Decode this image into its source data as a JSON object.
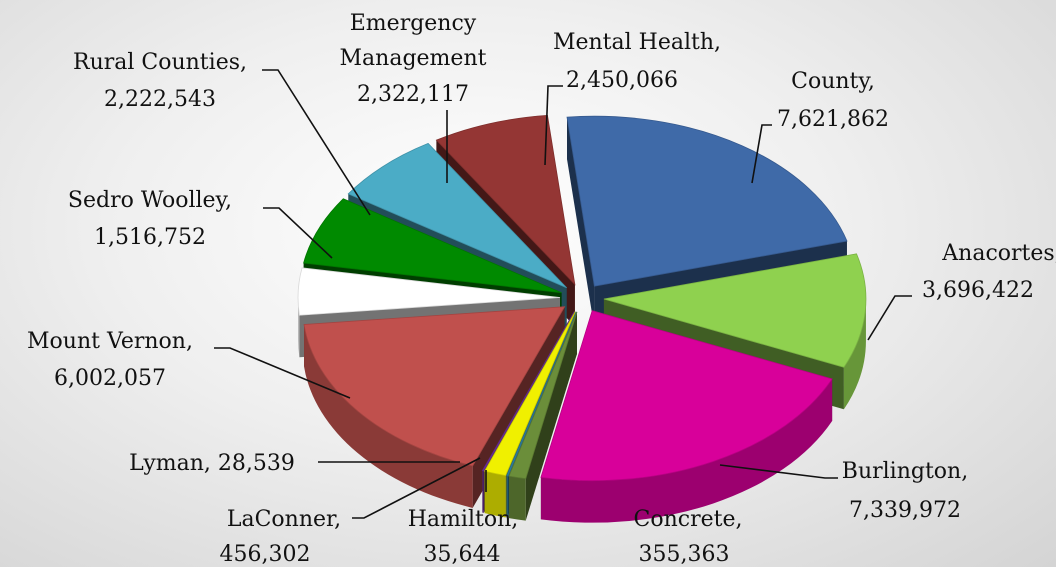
{
  "chart_data": {
    "type": "pie",
    "three_d": true,
    "exploded": true,
    "title": "",
    "series": [
      {
        "name": "",
        "slices": [
          {
            "label": "County",
            "value": 7621862,
            "display": "7,621,862",
            "color": "#3f6aa8"
          },
          {
            "label": "Anacortes",
            "value": 3696422,
            "display": "3,696,422",
            "color": "#8fd14f"
          },
          {
            "label": "Burlington",
            "value": 7339972,
            "display": "7,339,972",
            "color": "#d8009a"
          },
          {
            "label": "Concrete",
            "value": 355363,
            "display": "355,363",
            "color": "#6b8e3a"
          },
          {
            "label": "Hamilton",
            "value": 35644,
            "display": "35,644",
            "color": "#2f7fa0"
          },
          {
            "label": "LaConner",
            "value": 456302,
            "display": "456,302",
            "color": "#f0f000"
          },
          {
            "label": "Lyman",
            "value": 28539,
            "display": "28,539",
            "color": "#7030a0"
          },
          {
            "label": "Mount Vernon",
            "value": 6002057,
            "display": "6,002,057",
            "color": "#c0504d"
          },
          {
            "label": "Sedro Woolley",
            "value": 1516752,
            "display": "1,516,752",
            "color": "#ffffff"
          },
          {
            "label": "Rural Counties",
            "value": 2222543,
            "display": "2,222,543",
            "color": "#008a00"
          },
          {
            "label": "Emergency Management",
            "value": 2322117,
            "display": "2,322,117",
            "color": "#4bacc6"
          },
          {
            "label": "Mental Health",
            "value": 2450066,
            "display": "2,450,066",
            "color": "#943634"
          }
        ]
      }
    ],
    "labels": {
      "county": {
        "line1": "County,",
        "line2": "7,621,862"
      },
      "anacortes": {
        "line1": "Anacortes,",
        "line2": "3,696,422"
      },
      "burlington": {
        "line1": "Burlington,",
        "line2": "7,339,972"
      },
      "concrete": {
        "line1": "Concrete,",
        "line2": "355,363"
      },
      "hamilton": {
        "line1": "Hamilton,",
        "line2": "35,644"
      },
      "laconner": {
        "line1": "LaConner,",
        "line2": "456,302"
      },
      "lyman": {
        "line1": "Lyman,  28,539"
      },
      "mountvernon": {
        "line1": "Mount Vernon,",
        "line2": "6,002,057"
      },
      "sedro": {
        "line1": "Sedro Woolley,",
        "line2": "1,516,752"
      },
      "rural": {
        "line1": "Rural Counties,",
        "line2": "2,222,543"
      },
      "emergency": {
        "line1": "Emergency",
        "line2": "Management",
        "line3": "2,322,117"
      },
      "mental": {
        "line1": "Mental Health,",
        "line2": "2,450,066"
      }
    }
  }
}
